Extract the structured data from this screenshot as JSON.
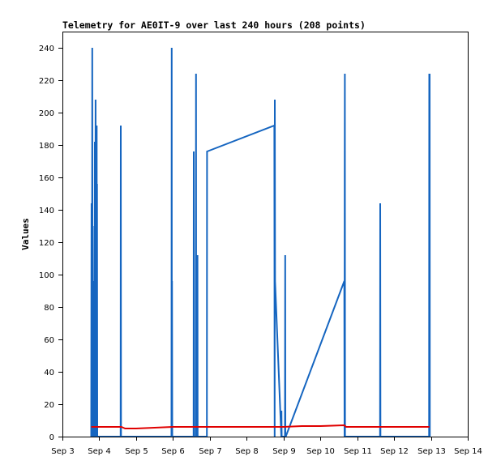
{
  "chart_data": {
    "type": "line",
    "title": "Telemetry for AE0IT-9 over last 240 hours (208 points)",
    "xlabel": "",
    "ylabel": "Values",
    "x_unit": "days (Sep)",
    "xlim": [
      3,
      14
    ],
    "ylim": [
      0,
      250
    ],
    "x_ticks": [
      3,
      4,
      5,
      6,
      7,
      8,
      9,
      10,
      11,
      12,
      13,
      14
    ],
    "x_tick_labels": [
      "Sep 3",
      "Sep 4",
      "Sep 5",
      "Sep 6",
      "Sep 7",
      "Sep 8",
      "Sep 9",
      "Sep 10",
      "Sep 11",
      "Sep 12",
      "Sep 13",
      "Sep 14"
    ],
    "y_ticks": [
      0,
      20,
      40,
      60,
      80,
      100,
      120,
      140,
      160,
      180,
      200,
      220,
      240
    ],
    "grid": false,
    "legend": "none",
    "series": [
      {
        "color": "#1565c0",
        "x": [
          3.78,
          3.79,
          3.8,
          3.81,
          3.82,
          3.83,
          3.84,
          3.85,
          3.86,
          3.87,
          3.875,
          3.88,
          3.89,
          3.9,
          3.91,
          3.92,
          3.93,
          3.935,
          3.94,
          3.945,
          3.95,
          3.96,
          4.58,
          4.585,
          4.59,
          5.96,
          5.965,
          5.97,
          5.975,
          5.98,
          6.56,
          6.565,
          6.57,
          6.62,
          6.625,
          6.63,
          6.66,
          6.665,
          6.67,
          6.92,
          6.925,
          8.75,
          8.76,
          8.765,
          8.77,
          8.94,
          8.945,
          8.95,
          9.04,
          9.045,
          9.05,
          9.06,
          10.65,
          10.655,
          10.66,
          10.665,
          10.67,
          11.62,
          11.625,
          11.63,
          12.95,
          12.955,
          12.96,
          12.965,
          12.97
        ],
        "y": [
          0,
          144,
          0,
          240,
          0,
          96,
          0,
          78,
          0,
          130,
          0,
          182,
          0,
          208,
          0,
          26,
          192,
          0,
          156,
          0,
          0,
          0,
          0,
          192,
          0,
          0,
          240,
          0,
          96,
          0,
          0,
          176,
          0,
          0,
          224,
          0,
          0,
          112,
          0,
          0,
          176,
          192,
          0,
          208,
          96,
          0,
          16,
          0,
          0,
          112,
          0,
          0,
          96,
          0,
          160,
          224,
          0,
          0,
          144,
          0,
          0,
          224,
          0,
          224,
          0
        ]
      },
      {
        "color": "#e00000",
        "x": [
          3.78,
          4.6,
          4.7,
          5.0,
          5.5,
          6.0,
          7.0,
          8.0,
          8.5,
          9.0,
          9.5,
          10.0,
          10.65,
          10.7,
          11.5,
          12.0,
          12.96
        ],
        "y": [
          6,
          6,
          5,
          5,
          5.5,
          6,
          6,
          6,
          6,
          6,
          6.5,
          6.5,
          7,
          6,
          6,
          6,
          6
        ]
      }
    ]
  }
}
